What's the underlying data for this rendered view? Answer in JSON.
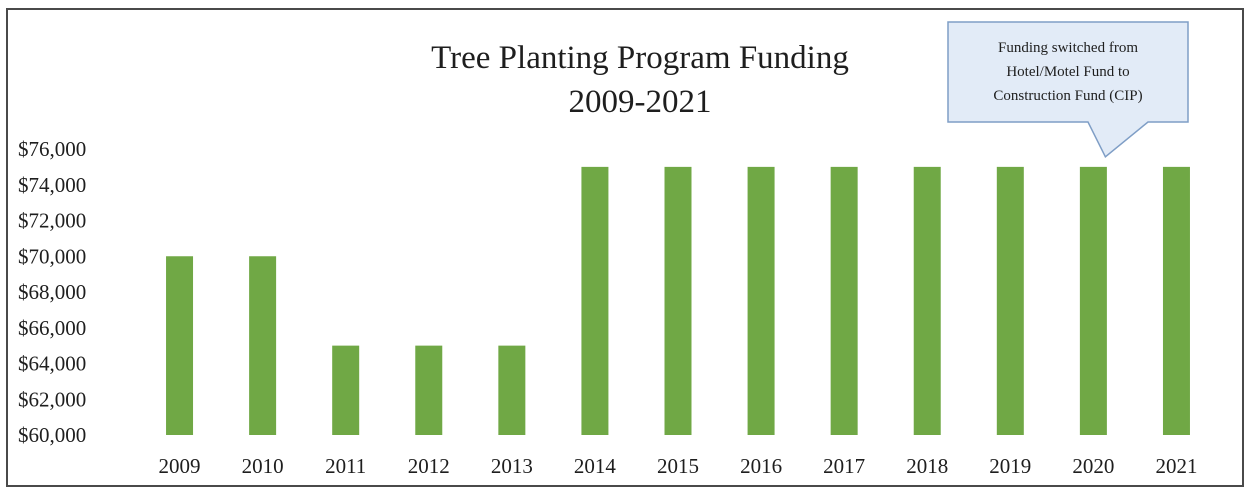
{
  "chart_data": {
    "type": "bar",
    "title": "Tree Planting Program Funding",
    "subtitle": "2009-2021",
    "xlabel": "",
    "ylabel": "",
    "categories": [
      "2009",
      "2010",
      "2011",
      "2012",
      "2013",
      "2014",
      "2015",
      "2016",
      "2017",
      "2018",
      "2019",
      "2020",
      "2021"
    ],
    "values": [
      70000,
      70000,
      65000,
      65000,
      65000,
      75000,
      75000,
      75000,
      75000,
      75000,
      75000,
      75000,
      75000
    ],
    "ylim": [
      60000,
      76000
    ],
    "yticks": [
      60000,
      62000,
      64000,
      66000,
      68000,
      70000,
      72000,
      74000,
      76000
    ],
    "ytick_labels": [
      "$60,000",
      "$62,000",
      "$64,000",
      "$66,000",
      "$68,000",
      "$70,000",
      "$72,000",
      "$74,000",
      "$76,000"
    ],
    "grid": false,
    "legend": "none",
    "bar_color": "#70a845",
    "annotation": {
      "lines": [
        "Funding switched from",
        "Hotel/Motel Fund to",
        "Construction Fund (CIP)"
      ],
      "points_to": "2020",
      "fill": "#e2ebf7",
      "stroke": "#7f9ec6"
    }
  }
}
